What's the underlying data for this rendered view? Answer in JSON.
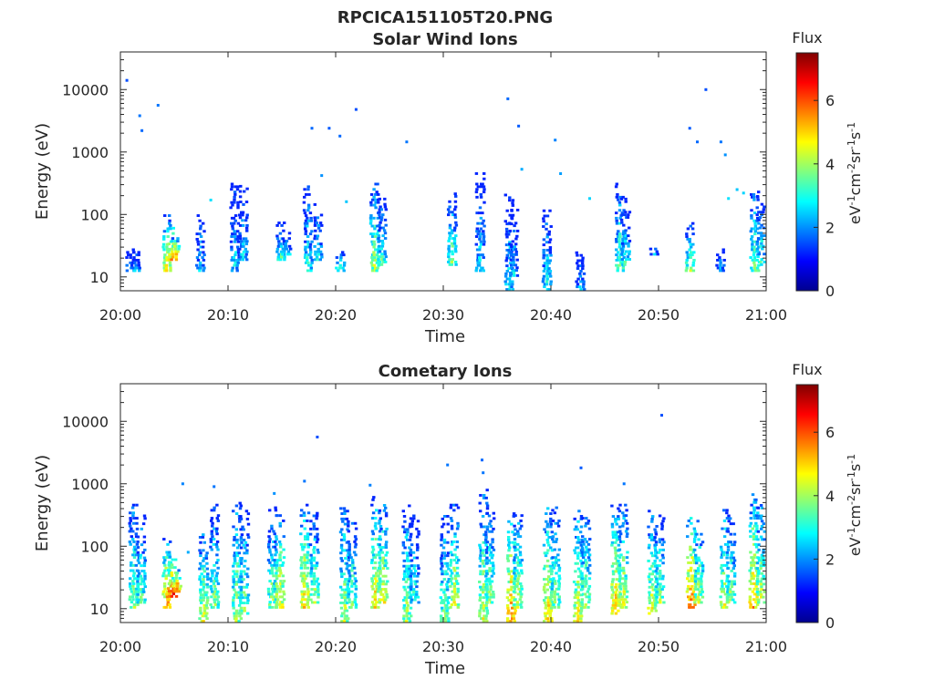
{
  "figure": {
    "filename": "RPCICA151105T20.PNG"
  },
  "colorbar": {
    "label": "Flux",
    "unit_parts": [
      "eV",
      "-1",
      "cm",
      "-2",
      "sr",
      "-1",
      "s",
      "-1"
    ],
    "ticks": [
      "0",
      "2",
      "4",
      "6"
    ],
    "range": [
      0,
      7.5
    ],
    "colormap": "jet"
  },
  "chart_data": [
    {
      "type": "heatmap",
      "title": "Solar Wind Ions",
      "xlabel": "Time",
      "ylabel": "Energy (eV)",
      "x_ticks": [
        "20:00",
        "20:10",
        "20:20",
        "20:30",
        "20:40",
        "20:50",
        "21:00"
      ],
      "x_range_minutes": [
        0,
        60
      ],
      "y_ticks": [
        "10",
        "100",
        "1000",
        "10000"
      ],
      "y_scale": "log",
      "y_range": [
        6,
        40000
      ],
      "color_label": "Flux",
      "color_range": [
        0,
        7.5
      ],
      "bursts": [
        {
          "t": 0.8,
          "e0": 12,
          "e1": 28,
          "peak": 3.2
        },
        {
          "t": 1.3,
          "e0": 12,
          "e1": 28,
          "peak": 3.0
        },
        {
          "t": 4.2,
          "e0": 12,
          "e1": 100,
          "peak": 5.6
        },
        {
          "t": 4.7,
          "e0": 18,
          "e1": 70,
          "peak": 6.2
        },
        {
          "t": 5.0,
          "e0": 22,
          "e1": 45,
          "peak": 5.8
        },
        {
          "t": 7.3,
          "e0": 12,
          "e1": 100,
          "peak": 3.2
        },
        {
          "t": 10.5,
          "e0": 12,
          "e1": 300,
          "peak": 3.4
        },
        {
          "t": 11.3,
          "e0": 18,
          "e1": 280,
          "peak": 3.2
        },
        {
          "t": 14.8,
          "e0": 18,
          "e1": 70,
          "peak": 4.0
        },
        {
          "t": 15.3,
          "e0": 22,
          "e1": 50,
          "peak": 3.6
        },
        {
          "t": 17.3,
          "e0": 12,
          "e1": 300,
          "peak": 3.7
        },
        {
          "t": 18.2,
          "e0": 18,
          "e1": 150,
          "peak": 3.4
        },
        {
          "t": 20.3,
          "e0": 12,
          "e1": 25,
          "peak": 3.8
        },
        {
          "t": 23.5,
          "e0": 12,
          "e1": 350,
          "peak": 4.8
        },
        {
          "t": 24.2,
          "e0": 15,
          "e1": 200,
          "peak": 4.1
        },
        {
          "t": 30.7,
          "e0": 15,
          "e1": 250,
          "peak": 4.3
        },
        {
          "t": 33.3,
          "e0": 12,
          "e1": 450,
          "peak": 3.4
        },
        {
          "t": 36.0,
          "e0": 6,
          "e1": 200,
          "peak": 3.6
        },
        {
          "t": 36.4,
          "e0": 10,
          "e1": 120,
          "peak": 3.2
        },
        {
          "t": 39.5,
          "e0": 6,
          "e1": 170,
          "peak": 3.6
        },
        {
          "t": 42.6,
          "e0": 6,
          "e1": 25,
          "peak": 3.0
        },
        {
          "t": 46.3,
          "e0": 12,
          "e1": 300,
          "peak": 4.3
        },
        {
          "t": 46.8,
          "e0": 15,
          "e1": 180,
          "peak": 3.8
        },
        {
          "t": 49.5,
          "e0": 22,
          "e1": 30,
          "peak": 3.0
        },
        {
          "t": 52.8,
          "e0": 12,
          "e1": 70,
          "peak": 4.6
        },
        {
          "t": 55.6,
          "e0": 12,
          "e1": 30,
          "peak": 3.0
        },
        {
          "t": 58.8,
          "e0": 12,
          "e1": 250,
          "peak": 4.3
        },
        {
          "t": 59.4,
          "e0": 15,
          "e1": 200,
          "peak": 3.8
        }
      ],
      "scatter": [
        {
          "t": 0.6,
          "e": 14000,
          "v": 1.5
        },
        {
          "t": 1.8,
          "e": 3800,
          "v": 1.8
        },
        {
          "t": 2.0,
          "e": 2200,
          "v": 1.7
        },
        {
          "t": 3.5,
          "e": 5600,
          "v": 1.8
        },
        {
          "t": 17.8,
          "e": 2400,
          "v": 1.7
        },
        {
          "t": 19.4,
          "e": 2400,
          "v": 1.6
        },
        {
          "t": 20.4,
          "e": 1800,
          "v": 1.7
        },
        {
          "t": 21.9,
          "e": 4800,
          "v": 1.5
        },
        {
          "t": 26.6,
          "e": 1450,
          "v": 1.8
        },
        {
          "t": 36.0,
          "e": 7100,
          "v": 1.7
        },
        {
          "t": 37.0,
          "e": 2600,
          "v": 1.6
        },
        {
          "t": 40.4,
          "e": 1550,
          "v": 1.9
        },
        {
          "t": 54.4,
          "e": 10000,
          "v": 1.5
        },
        {
          "t": 52.9,
          "e": 2400,
          "v": 1.6
        },
        {
          "t": 53.6,
          "e": 1450,
          "v": 1.7
        },
        {
          "t": 55.8,
          "e": 1450,
          "v": 1.8
        },
        {
          "t": 56.2,
          "e": 900,
          "v": 2.0
        },
        {
          "t": 37.3,
          "e": 530,
          "v": 2.2
        },
        {
          "t": 40.9,
          "e": 450,
          "v": 2.1
        },
        {
          "t": 18.7,
          "e": 420,
          "v": 2.0
        },
        {
          "t": 21.0,
          "e": 160,
          "v": 2.4
        },
        {
          "t": 8.4,
          "e": 170,
          "v": 2.6
        },
        {
          "t": 43.6,
          "e": 180,
          "v": 2.5
        },
        {
          "t": 57.3,
          "e": 250,
          "v": 2.4
        },
        {
          "t": 56.5,
          "e": 180,
          "v": 2.6
        },
        {
          "t": 57.9,
          "e": 220,
          "v": 2.5
        }
      ]
    },
    {
      "type": "heatmap",
      "title": "Cometary Ions",
      "xlabel": "Time",
      "ylabel": "Energy (eV)",
      "x_ticks": [
        "20:00",
        "20:10",
        "20:20",
        "20:30",
        "20:40",
        "20:50",
        "21:00"
      ],
      "x_range_minutes": [
        0,
        60
      ],
      "y_ticks": [
        "10",
        "100",
        "1000",
        "10000"
      ],
      "y_scale": "log",
      "y_range": [
        6,
        40000
      ],
      "color_label": "Flux",
      "color_range": [
        0,
        7.5
      ],
      "bursts": [
        {
          "t": 1.1,
          "e0": 10,
          "e1": 450,
          "peak": 4.6
        },
        {
          "t": 1.8,
          "e0": 12,
          "e1": 300,
          "peak": 4.2
        },
        {
          "t": 4.2,
          "e0": 10,
          "e1": 130,
          "peak": 6.3
        },
        {
          "t": 4.7,
          "e0": 15,
          "e1": 70,
          "peak": 7.2
        },
        {
          "t": 5.1,
          "e0": 18,
          "e1": 45,
          "peak": 6.6
        },
        {
          "t": 7.6,
          "e0": 6,
          "e1": 150,
          "peak": 5.2
        },
        {
          "t": 8.6,
          "e0": 10,
          "e1": 450,
          "peak": 4.4
        },
        {
          "t": 10.7,
          "e0": 6,
          "e1": 500,
          "peak": 4.9
        },
        {
          "t": 11.4,
          "e0": 8,
          "e1": 350,
          "peak": 4.5
        },
        {
          "t": 14.0,
          "e0": 10,
          "e1": 400,
          "peak": 4.6
        },
        {
          "t": 14.7,
          "e0": 10,
          "e1": 300,
          "peak": 5.6
        },
        {
          "t": 17.0,
          "e0": 10,
          "e1": 450,
          "peak": 5.8
        },
        {
          "t": 17.9,
          "e0": 12,
          "e1": 350,
          "peak": 4.6
        },
        {
          "t": 20.7,
          "e0": 6,
          "e1": 500,
          "peak": 4.9
        },
        {
          "t": 21.4,
          "e0": 10,
          "e1": 350,
          "peak": 4.4
        },
        {
          "t": 23.6,
          "e0": 10,
          "e1": 600,
          "peak": 5.7
        },
        {
          "t": 24.3,
          "e0": 12,
          "e1": 450,
          "peak": 5.5
        },
        {
          "t": 26.5,
          "e0": 6,
          "e1": 450,
          "peak": 4.8
        },
        {
          "t": 27.2,
          "e0": 12,
          "e1": 300,
          "peak": 3.8
        },
        {
          "t": 30.0,
          "e0": 6,
          "e1": 300,
          "peak": 4.6
        },
        {
          "t": 30.9,
          "e0": 10,
          "e1": 450,
          "peak": 5.3
        },
        {
          "t": 33.6,
          "e0": 6,
          "e1": 800,
          "peak": 5.1
        },
        {
          "t": 34.2,
          "e0": 12,
          "e1": 350,
          "peak": 4.7
        },
        {
          "t": 36.2,
          "e0": 6,
          "e1": 400,
          "peak": 6.3
        },
        {
          "t": 36.8,
          "e0": 10,
          "e1": 300,
          "peak": 5.0
        },
        {
          "t": 39.6,
          "e0": 6,
          "e1": 450,
          "peak": 5.8
        },
        {
          "t": 40.3,
          "e0": 10,
          "e1": 400,
          "peak": 4.6
        },
        {
          "t": 42.4,
          "e0": 6,
          "e1": 350,
          "peak": 5.5
        },
        {
          "t": 43.1,
          "e0": 10,
          "e1": 300,
          "peak": 4.9
        },
        {
          "t": 45.9,
          "e0": 8,
          "e1": 500,
          "peak": 6.0
        },
        {
          "t": 46.6,
          "e0": 10,
          "e1": 450,
          "peak": 5.3
        },
        {
          "t": 49.3,
          "e0": 8,
          "e1": 350,
          "peak": 5.4
        },
        {
          "t": 50.0,
          "e0": 12,
          "e1": 300,
          "peak": 4.6
        },
        {
          "t": 52.9,
          "e0": 10,
          "e1": 350,
          "peak": 6.6
        },
        {
          "t": 53.6,
          "e0": 12,
          "e1": 250,
          "peak": 5.0
        },
        {
          "t": 56.0,
          "e0": 10,
          "e1": 400,
          "peak": 5.2
        },
        {
          "t": 56.6,
          "e0": 12,
          "e1": 300,
          "peak": 4.5
        },
        {
          "t": 58.7,
          "e0": 10,
          "e1": 700,
          "peak": 6.1
        },
        {
          "t": 59.4,
          "e0": 12,
          "e1": 500,
          "peak": 5.0
        }
      ],
      "scatter": [
        {
          "t": 18.3,
          "e": 5600,
          "v": 1.5
        },
        {
          "t": 50.3,
          "e": 12500,
          "v": 1.5
        },
        {
          "t": 30.4,
          "e": 2000,
          "v": 1.8
        },
        {
          "t": 33.6,
          "e": 2400,
          "v": 1.7
        },
        {
          "t": 33.7,
          "e": 1500,
          "v": 1.8
        },
        {
          "t": 42.8,
          "e": 1800,
          "v": 1.6
        },
        {
          "t": 5.8,
          "e": 1000,
          "v": 1.9
        },
        {
          "t": 8.7,
          "e": 900,
          "v": 1.8
        },
        {
          "t": 14.3,
          "e": 700,
          "v": 2.0
        },
        {
          "t": 17.1,
          "e": 1100,
          "v": 1.8
        },
        {
          "t": 23.2,
          "e": 950,
          "v": 1.9
        },
        {
          "t": 46.8,
          "e": 1000,
          "v": 1.8
        },
        {
          "t": 6.3,
          "e": 80,
          "v": 2.2
        }
      ]
    }
  ]
}
